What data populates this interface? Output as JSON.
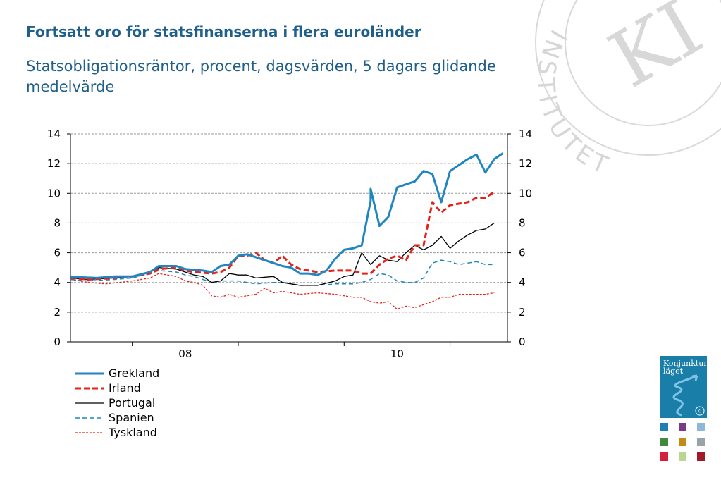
{
  "header": {
    "title": "Fortsatt oro för statsfinanserna i flera euroländer",
    "subtitle": "Statsobligationsräntor, procent, dagsvärden, 5 dagars glidande medelvärde"
  },
  "watermark": {
    "text": "INSTITUTET",
    "monogram": "KI"
  },
  "logo": {
    "title_line1": "Konjunktur",
    "title_line2": "läget",
    "badge": "KI",
    "color": "#1a7fa8"
  },
  "tiles": [
    "#1f7fb5",
    "#7a3b86",
    "#8fb8d6",
    "#3f8a3f",
    "#c48a16",
    "#9aa3a7",
    "#d61f3a",
    "#b8d890",
    "#a01a2a"
  ],
  "chart_data": {
    "type": "line",
    "x_range": [
      "2007-06",
      "2011-06"
    ],
    "ylim": [
      0,
      14
    ],
    "yticks": [
      0,
      2,
      4,
      6,
      8,
      10,
      12,
      14
    ],
    "xtick_labels": [
      {
        "label": "08",
        "x": "2008-01"
      },
      {
        "label": "10",
        "x": "2010-01"
      }
    ],
    "grid": "horizontal dashed",
    "secondary_y_axis": true,
    "legend_position": "bottom-left",
    "series": [
      {
        "name": "Grekland",
        "color": "#1f86c2",
        "dash": "solid",
        "width": 3,
        "points": [
          [
            "2007-06",
            4.4
          ],
          [
            "2007-07",
            4.35
          ],
          [
            "2007-09",
            4.3
          ],
          [
            "2007-11",
            4.4
          ],
          [
            "2008-01",
            4.4
          ],
          [
            "2008-03",
            4.7
          ],
          [
            "2008-04",
            5.1
          ],
          [
            "2008-06",
            5.1
          ],
          [
            "2008-07",
            4.9
          ],
          [
            "2008-09",
            4.8
          ],
          [
            "2008-10",
            4.7
          ],
          [
            "2008-11",
            5.1
          ],
          [
            "2008-12",
            5.2
          ],
          [
            "2009-01",
            5.8
          ],
          [
            "2009-02",
            5.9
          ],
          [
            "2009-03",
            5.7
          ],
          [
            "2009-05",
            5.3
          ],
          [
            "2009-06",
            5.1
          ],
          [
            "2009-07",
            5.0
          ],
          [
            "2009-08",
            4.6
          ],
          [
            "2009-09",
            4.6
          ],
          [
            "2009-10",
            4.5
          ],
          [
            "2009-11",
            4.8
          ],
          [
            "2009-12",
            5.6
          ],
          [
            "2010-01",
            6.2
          ],
          [
            "2010-02",
            6.3
          ],
          [
            "2010-03",
            6.5
          ],
          [
            "2010-04",
            9.5
          ],
          [
            "2010-04",
            10.3
          ],
          [
            "2010-05",
            7.8
          ],
          [
            "2010-06",
            8.4
          ],
          [
            "2010-07",
            10.4
          ],
          [
            "2010-08",
            10.6
          ],
          [
            "2010-09",
            10.8
          ],
          [
            "2010-10",
            11.5
          ],
          [
            "2010-11",
            11.3
          ],
          [
            "2010-12",
            9.4
          ],
          [
            "2011-01",
            11.5
          ],
          [
            "2011-02",
            11.9
          ],
          [
            "2011-03",
            12.3
          ],
          [
            "2011-04",
            12.6
          ],
          [
            "2011-05",
            11.4
          ],
          [
            "2011-06",
            12.3
          ],
          [
            "2011-07",
            12.7
          ]
        ]
      },
      {
        "name": "Irland",
        "color": "#e2231a",
        "dash": "8 4",
        "width": 3,
        "points": [
          [
            "2007-06",
            4.3
          ],
          [
            "2007-08",
            4.2
          ],
          [
            "2007-11",
            4.3
          ],
          [
            "2008-01",
            4.4
          ],
          [
            "2008-03",
            4.6
          ],
          [
            "2008-04",
            4.9
          ],
          [
            "2008-06",
            5.0
          ],
          [
            "2008-07",
            4.8
          ],
          [
            "2008-08",
            4.7
          ],
          [
            "2008-10",
            4.6
          ],
          [
            "2008-11",
            4.7
          ],
          [
            "2008-12",
            5.0
          ],
          [
            "2009-01",
            5.8
          ],
          [
            "2009-02",
            5.8
          ],
          [
            "2009-03",
            6.0
          ],
          [
            "2009-04",
            5.5
          ],
          [
            "2009-05",
            5.3
          ],
          [
            "2009-06",
            5.8
          ],
          [
            "2009-07",
            5.2
          ],
          [
            "2009-08",
            4.9
          ],
          [
            "2009-10",
            4.7
          ],
          [
            "2009-12",
            4.8
          ],
          [
            "2010-01",
            4.8
          ],
          [
            "2010-02",
            4.8
          ],
          [
            "2010-03",
            4.6
          ],
          [
            "2010-04",
            4.6
          ],
          [
            "2010-05",
            5.2
          ],
          [
            "2010-06",
            5.6
          ],
          [
            "2010-07",
            5.8
          ],
          [
            "2010-08",
            5.5
          ],
          [
            "2010-09",
            6.5
          ],
          [
            "2010-10",
            6.5
          ],
          [
            "2010-11",
            9.4
          ],
          [
            "2010-12",
            8.7
          ],
          [
            "2011-01",
            9.2
          ],
          [
            "2011-02",
            9.3
          ],
          [
            "2011-03",
            9.4
          ],
          [
            "2011-04",
            9.7
          ],
          [
            "2011-05",
            9.7
          ],
          [
            "2011-06",
            10.1
          ]
        ]
      },
      {
        "name": "Portugal",
        "color": "#000000",
        "dash": "solid",
        "width": 1.3,
        "points": [
          [
            "2007-06",
            4.3
          ],
          [
            "2007-08",
            4.2
          ],
          [
            "2007-11",
            4.3
          ],
          [
            "2008-01",
            4.4
          ],
          [
            "2008-03",
            4.7
          ],
          [
            "2008-04",
            5.0
          ],
          [
            "2008-06",
            4.9
          ],
          [
            "2008-07",
            4.7
          ],
          [
            "2008-08",
            4.5
          ],
          [
            "2008-09",
            4.4
          ],
          [
            "2008-10",
            4.0
          ],
          [
            "2008-11",
            4.1
          ],
          [
            "2008-12",
            4.6
          ],
          [
            "2009-01",
            4.5
          ],
          [
            "2009-02",
            4.5
          ],
          [
            "2009-03",
            4.3
          ],
          [
            "2009-05",
            4.4
          ],
          [
            "2009-06",
            4.0
          ],
          [
            "2009-07",
            3.9
          ],
          [
            "2009-08",
            3.8
          ],
          [
            "2009-10",
            3.8
          ],
          [
            "2009-12",
            4.1
          ],
          [
            "2010-01",
            4.4
          ],
          [
            "2010-02",
            4.5
          ],
          [
            "2010-03",
            6.0
          ],
          [
            "2010-04",
            5.2
          ],
          [
            "2010-05",
            5.8
          ],
          [
            "2010-06",
            5.5
          ],
          [
            "2010-07",
            5.4
          ],
          [
            "2010-08",
            6.0
          ],
          [
            "2010-09",
            6.5
          ],
          [
            "2010-10",
            6.2
          ],
          [
            "2010-11",
            6.5
          ],
          [
            "2010-12",
            7.1
          ],
          [
            "2011-01",
            6.3
          ],
          [
            "2011-02",
            6.8
          ],
          [
            "2011-03",
            7.2
          ],
          [
            "2011-04",
            7.5
          ],
          [
            "2011-05",
            7.6
          ],
          [
            "2011-06",
            8.0
          ]
        ]
      },
      {
        "name": "Spanien",
        "color": "#1f86c2",
        "dash": "6 4",
        "width": 1.5,
        "points": [
          [
            "2007-06",
            4.2
          ],
          [
            "2007-08",
            4.1
          ],
          [
            "2007-11",
            4.2
          ],
          [
            "2008-01",
            4.3
          ],
          [
            "2008-03",
            4.6
          ],
          [
            "2008-04",
            4.8
          ],
          [
            "2008-06",
            4.7
          ],
          [
            "2008-07",
            4.5
          ],
          [
            "2008-08",
            4.4
          ],
          [
            "2008-09",
            4.2
          ],
          [
            "2008-10",
            4.0
          ],
          [
            "2008-11",
            4.1
          ],
          [
            "2008-12",
            4.1
          ],
          [
            "2009-01",
            4.1
          ],
          [
            "2009-02",
            4.0
          ],
          [
            "2009-03",
            3.9
          ],
          [
            "2009-05",
            4.0
          ],
          [
            "2009-06",
            4.0
          ],
          [
            "2009-07",
            3.9
          ],
          [
            "2009-08",
            3.8
          ],
          [
            "2009-10",
            3.8
          ],
          [
            "2009-12",
            3.9
          ],
          [
            "2010-01",
            3.9
          ],
          [
            "2010-02",
            3.9
          ],
          [
            "2010-03",
            4.0
          ],
          [
            "2010-04",
            4.2
          ],
          [
            "2010-05",
            4.6
          ],
          [
            "2010-06",
            4.5
          ],
          [
            "2010-07",
            4.1
          ],
          [
            "2010-08",
            4.0
          ],
          [
            "2010-09",
            4.0
          ],
          [
            "2010-10",
            4.3
          ],
          [
            "2010-11",
            5.3
          ],
          [
            "2010-12",
            5.5
          ],
          [
            "2011-01",
            5.4
          ],
          [
            "2011-02",
            5.2
          ],
          [
            "2011-03",
            5.3
          ],
          [
            "2011-04",
            5.4
          ],
          [
            "2011-05",
            5.2
          ],
          [
            "2011-06",
            5.2
          ]
        ]
      },
      {
        "name": "Tyskland",
        "color": "#e2231a",
        "dash": "3 2",
        "width": 1.3,
        "points": [
          [
            "2007-06",
            4.2
          ],
          [
            "2007-08",
            4.0
          ],
          [
            "2007-10",
            3.9
          ],
          [
            "2008-01",
            4.1
          ],
          [
            "2008-03",
            4.3
          ],
          [
            "2008-04",
            4.6
          ],
          [
            "2008-06",
            4.4
          ],
          [
            "2008-07",
            4.1
          ],
          [
            "2008-08",
            4.0
          ],
          [
            "2008-09",
            3.8
          ],
          [
            "2008-10",
            3.1
          ],
          [
            "2008-11",
            3.0
          ],
          [
            "2008-12",
            3.2
          ],
          [
            "2009-01",
            3.0
          ],
          [
            "2009-02",
            3.1
          ],
          [
            "2009-03",
            3.2
          ],
          [
            "2009-04",
            3.6
          ],
          [
            "2009-05",
            3.3
          ],
          [
            "2009-06",
            3.4
          ],
          [
            "2009-07",
            3.3
          ],
          [
            "2009-08",
            3.2
          ],
          [
            "2009-10",
            3.3
          ],
          [
            "2009-12",
            3.2
          ],
          [
            "2010-01",
            3.1
          ],
          [
            "2010-02",
            3.0
          ],
          [
            "2010-03",
            3.0
          ],
          [
            "2010-04",
            2.7
          ],
          [
            "2010-05",
            2.6
          ],
          [
            "2010-06",
            2.7
          ],
          [
            "2010-07",
            2.2
          ],
          [
            "2010-08",
            2.4
          ],
          [
            "2010-09",
            2.3
          ],
          [
            "2010-10",
            2.5
          ],
          [
            "2010-11",
            2.7
          ],
          [
            "2010-12",
            3.0
          ],
          [
            "2011-01",
            3.0
          ],
          [
            "2011-02",
            3.2
          ],
          [
            "2011-03",
            3.2
          ],
          [
            "2011-04",
            3.2
          ],
          [
            "2011-05",
            3.2
          ],
          [
            "2011-06",
            3.3
          ]
        ]
      }
    ]
  }
}
